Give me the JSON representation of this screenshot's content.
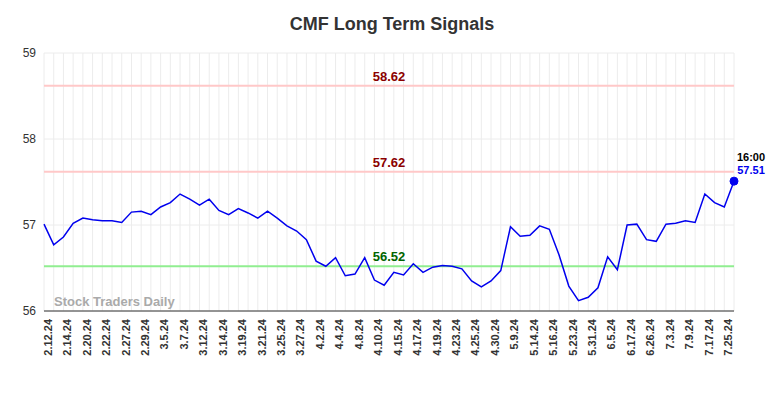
{
  "chart_data": {
    "type": "line",
    "title": "CMF Long Term Signals",
    "watermark": "Stock Traders Daily",
    "categories": [
      "2.12.24",
      null,
      "2.14.24",
      null,
      "2.20.24",
      null,
      "2.22.24",
      null,
      "2.27.24",
      null,
      "2.29.24",
      null,
      "3.5.24",
      null,
      "3.7.24",
      null,
      "3.12.24",
      null,
      "3.14.24",
      null,
      "3.19.24",
      null,
      "3.21.24",
      null,
      "3.25.24",
      null,
      "3.27.24",
      null,
      "4.2.24",
      null,
      "4.4.24",
      null,
      "4.8.24",
      null,
      "4.10.24",
      null,
      "4.15.24",
      null,
      "4.17.24",
      null,
      "4.19.24",
      null,
      "4.23.24",
      null,
      "4.25.24",
      null,
      "4.30.24",
      null,
      "5.9.24",
      null,
      "5.14.24",
      null,
      "5.16.24",
      null,
      "5.23.24",
      null,
      "5.31.24",
      null,
      "6.5.24",
      null,
      "6.17.24",
      null,
      "6.26.24",
      null,
      "7.3.24",
      null,
      "7.9.24",
      null,
      "7.17.24",
      null,
      "7.25.24",
      null
    ],
    "values": [
      57.01,
      56.77,
      56.86,
      57.02,
      57.08,
      57.06,
      57.05,
      57.05,
      57.03,
      57.15,
      57.16,
      57.12,
      57.21,
      57.26,
      57.36,
      57.3,
      57.23,
      57.3,
      57.17,
      57.12,
      57.19,
      57.14,
      57.08,
      57.16,
      57.08,
      56.99,
      56.93,
      56.83,
      56.58,
      56.52,
      56.62,
      56.41,
      56.43,
      56.62,
      56.36,
      56.3,
      56.45,
      56.42,
      56.55,
      56.45,
      56.51,
      56.53,
      56.52,
      56.49,
      56.35,
      56.28,
      56.35,
      56.47,
      56.98,
      56.87,
      56.88,
      56.99,
      56.95,
      56.65,
      56.29,
      56.12,
      56.16,
      56.27,
      56.63,
      56.48,
      57.0,
      57.01,
      56.83,
      56.81,
      57.01,
      57.02,
      57.05,
      57.03,
      57.36,
      57.26,
      57.21,
      57.51
    ],
    "color": "#0000ee",
    "ylim": [
      56,
      59
    ],
    "yticks": [
      56,
      57,
      58,
      59
    ],
    "grid": true,
    "reference_lines": [
      {
        "value": 58.62,
        "label": "58.62",
        "color": "#ffc8c8",
        "label_color": "#8b0000"
      },
      {
        "value": 57.62,
        "label": "57.62",
        "color": "#ffc8c8",
        "label_color": "#8b0000"
      },
      {
        "value": 56.52,
        "label": "56.52",
        "color": "#90ee90",
        "label_color": "#006400"
      }
    ],
    "last_point": {
      "time_label": "16:00",
      "value": 57.51,
      "time_color": "#000000"
    }
  }
}
